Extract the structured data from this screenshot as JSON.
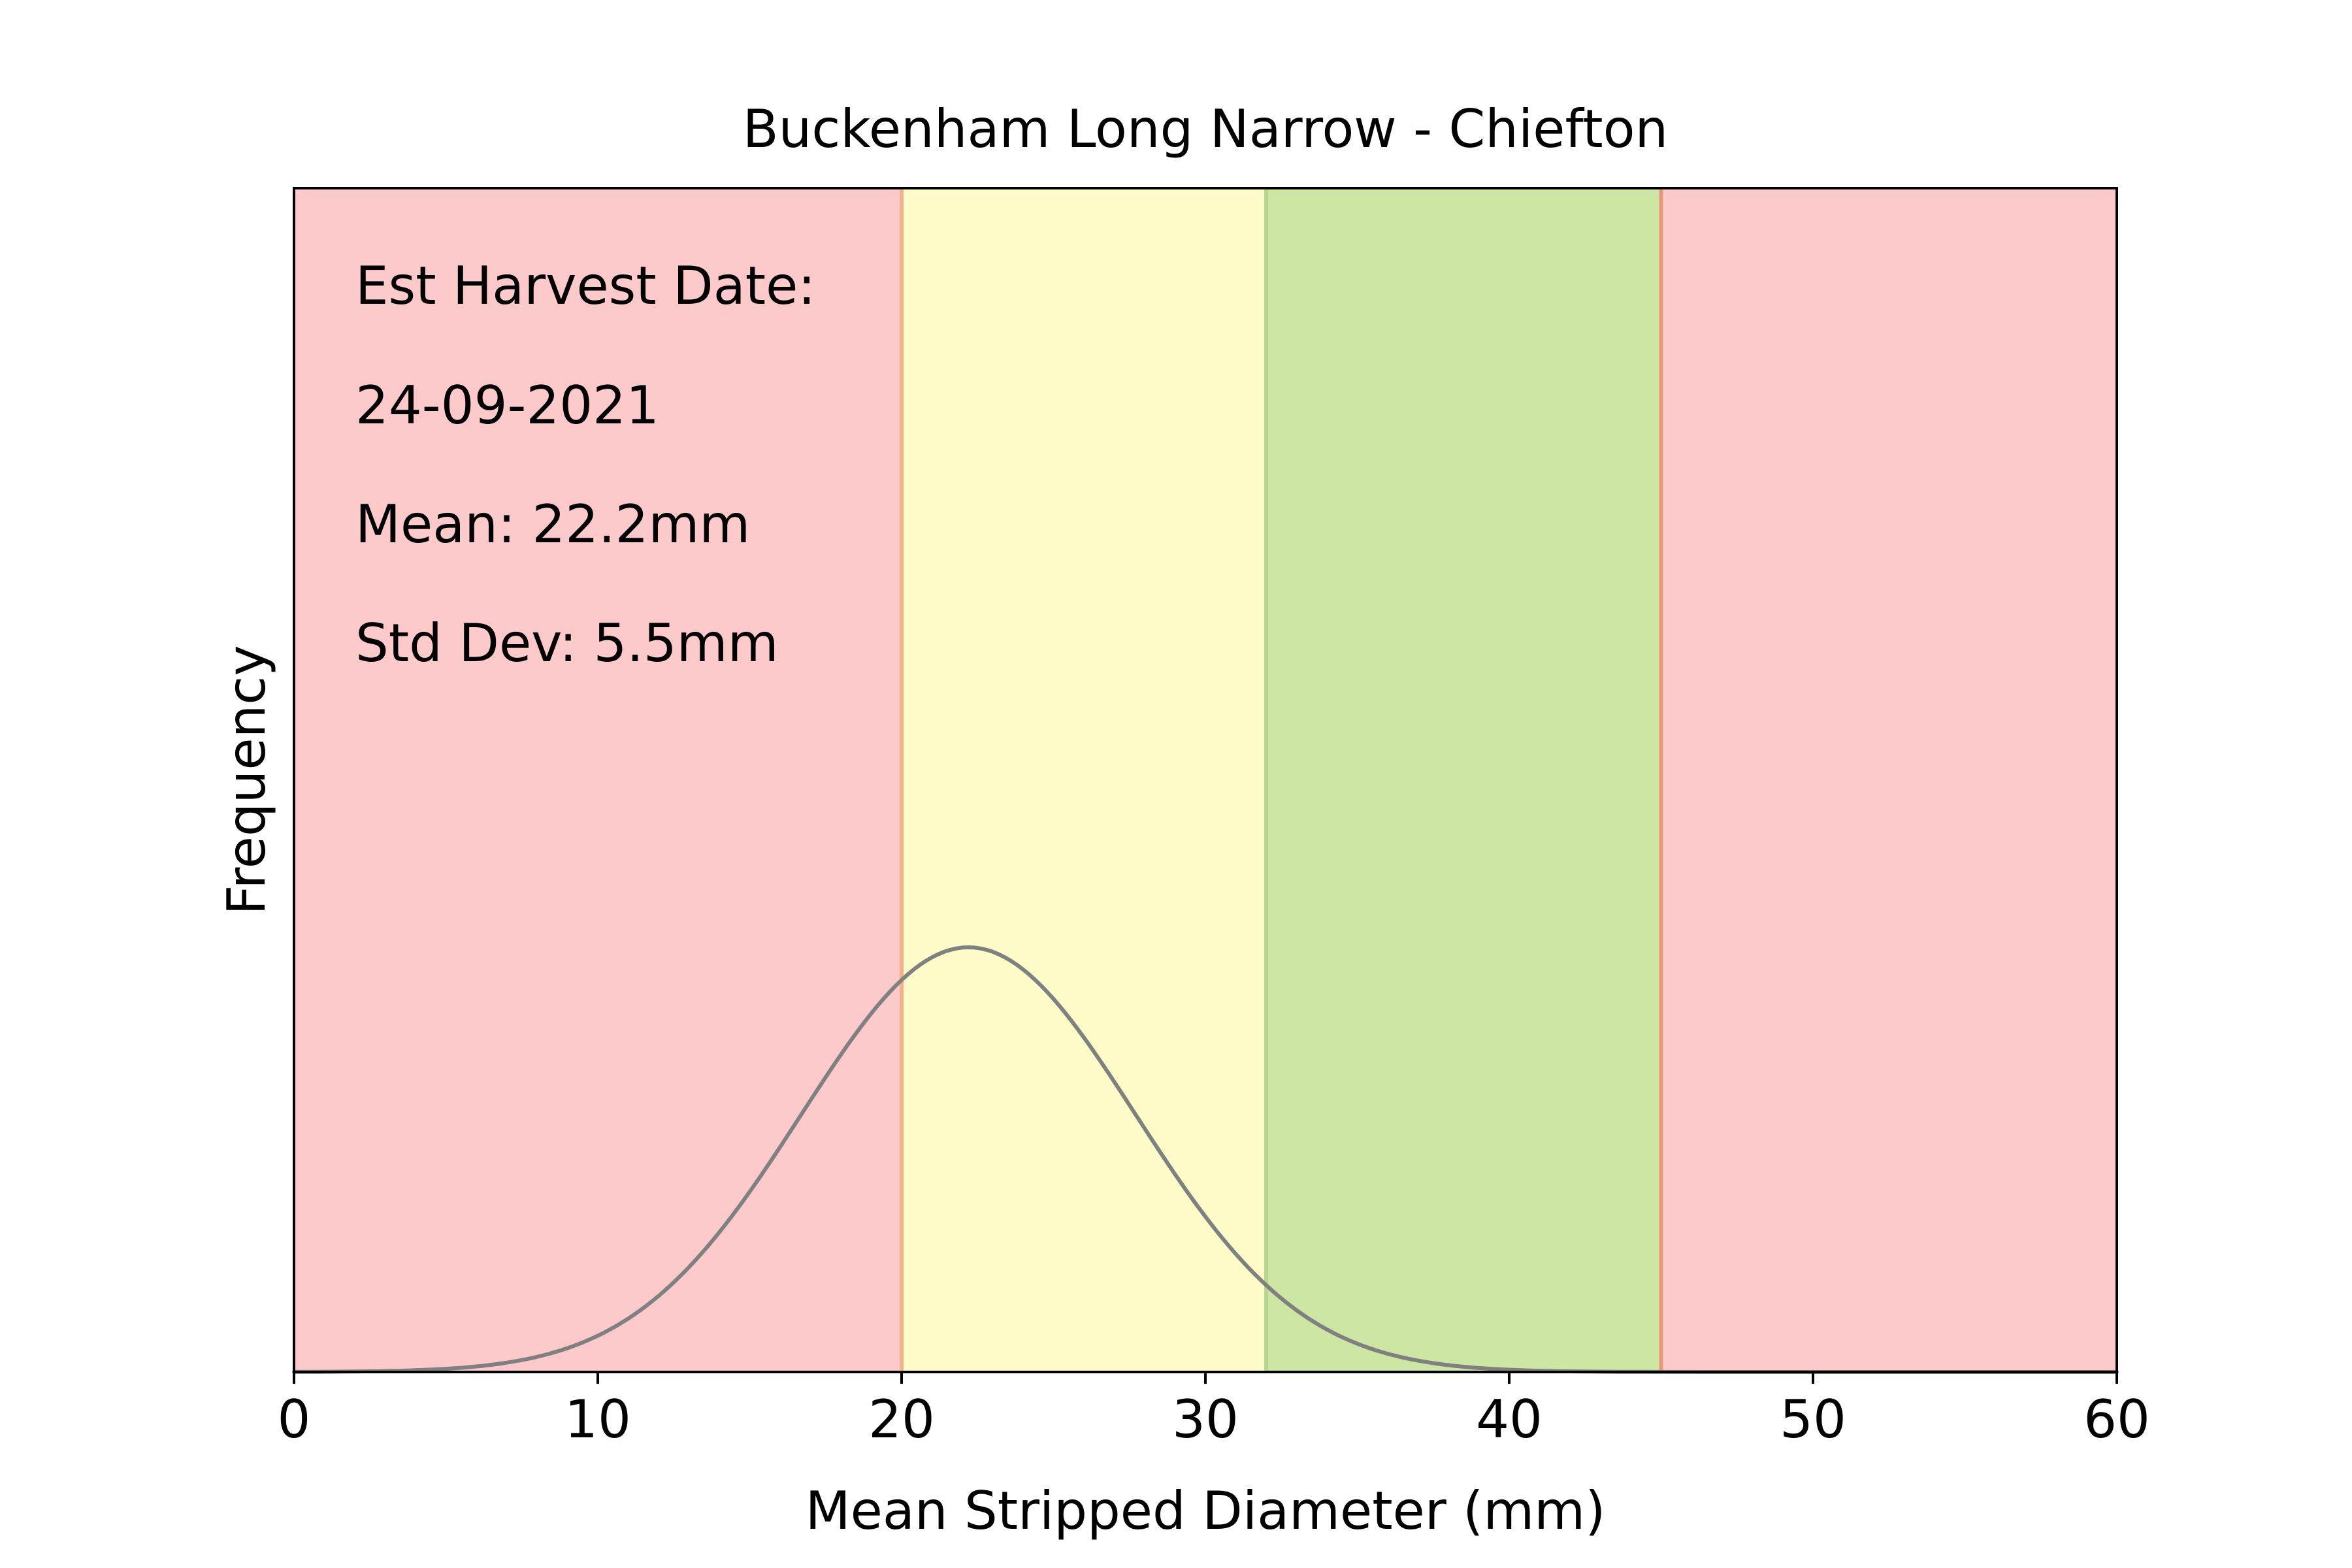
{
  "chart_data": {
    "type": "area",
    "title": "Buckenham Long Narrow - Chiefton",
    "xlabel": "Mean Stripped Diameter (mm)",
    "ylabel": "Frequency",
    "xlim": [
      0,
      60
    ],
    "x_ticks": [
      "0",
      "10",
      "20",
      "30",
      "40",
      "50",
      "60"
    ],
    "y_ticks_shown": false,
    "grid": false,
    "legend": "none",
    "zones": [
      {
        "from": 0,
        "to": 20,
        "color": "#fdcacb"
      },
      {
        "from": 20,
        "to": 32,
        "color": "#fefcc9"
      },
      {
        "from": 32,
        "to": 45,
        "color": "#cee6a4"
      },
      {
        "from": 45,
        "to": 60,
        "color": "#fdcacb"
      }
    ],
    "zone_boundaries": [
      {
        "x": 20,
        "color": "#f5b08e"
      },
      {
        "x": 32,
        "color": "#b8d68f"
      },
      {
        "x": 45,
        "color": "#e79a78"
      }
    ],
    "series": [
      {
        "distribution": "normal",
        "mean": 22.2,
        "std": 5.5,
        "color": "#808080"
      }
    ],
    "annotations": {
      "harvest_label": "Est Harvest Date:",
      "harvest_date": "24-09-2021",
      "mean_text": "Mean: 22.2mm",
      "std_text": "Std Dev: 5.5mm"
    }
  }
}
